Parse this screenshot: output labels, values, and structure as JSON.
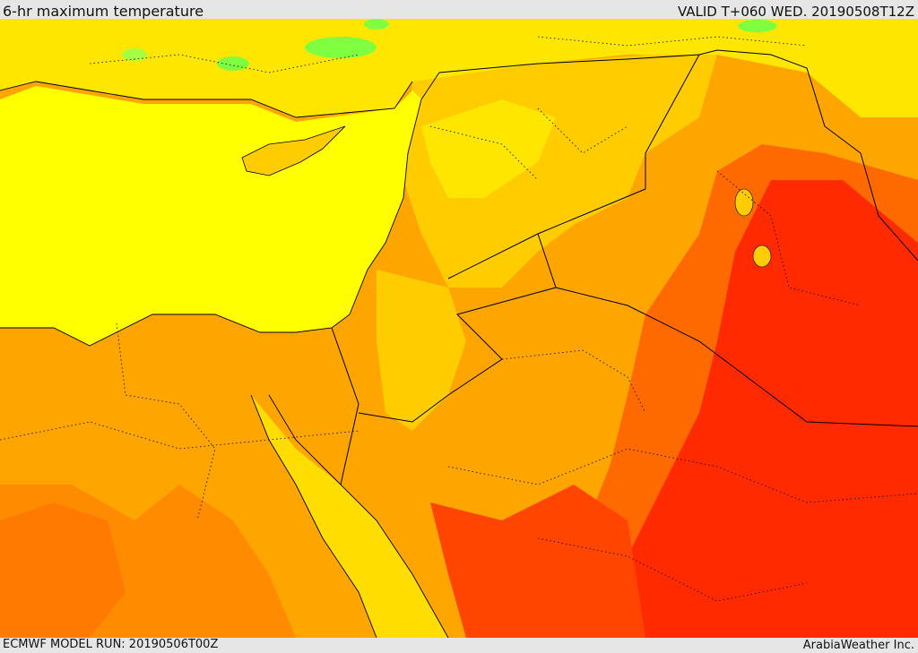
{
  "header": {
    "title": "6-hr maximum temperature",
    "valid_time": "VALID T+060 WED. 20190508T12Z"
  },
  "footer": {
    "model_run": "ECMWF MODEL RUN: 20190506T00Z",
    "credit": "ArabiaWeather Inc."
  },
  "map": {
    "palette": {
      "sea": "#ffff00",
      "cool_green": "#7fff40",
      "yellow": "#ffe600",
      "light_orange": "#ffcc00",
      "orange": "#ffa500",
      "dark_orange": "#ff8000",
      "red_orange": "#ff4500",
      "red": "#ff2a00",
      "border": "#000000"
    }
  }
}
